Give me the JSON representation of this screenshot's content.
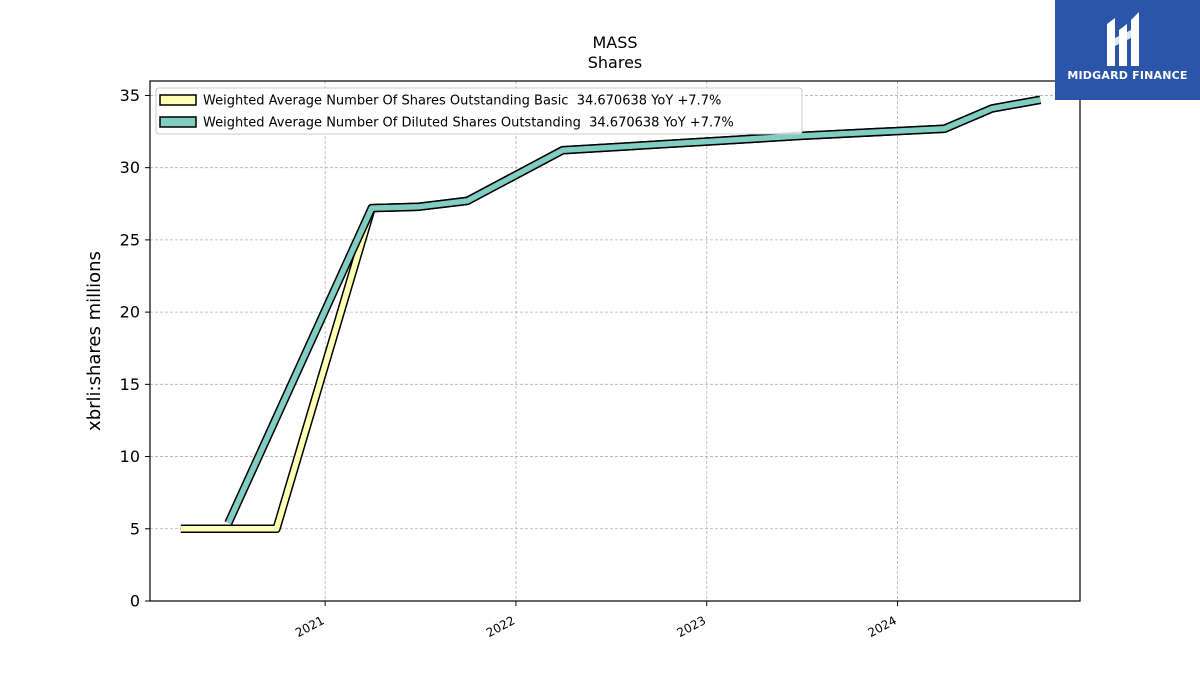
{
  "chart_data": {
    "type": "line",
    "title": "MASS",
    "subtitle": "Shares",
    "xlabel": "",
    "ylabel": "xbrli:shares millions",
    "xlim": [
      "2020-02-01",
      "2024-12-15"
    ],
    "ylim": [
      0,
      36
    ],
    "y_ticks": [
      0,
      5,
      10,
      15,
      20,
      25,
      30,
      35
    ],
    "x_ticks": [
      {
        "date": "2021-01-01",
        "label": "2021"
      },
      {
        "date": "2022-01-01",
        "label": "2022"
      },
      {
        "date": "2023-01-01",
        "label": "2023"
      },
      {
        "date": "2024-01-01",
        "label": "2024"
      }
    ],
    "grid": true,
    "legend_position": "top-left",
    "series": [
      {
        "name": "Weighted Average Number Of Shares Outstanding Basic  34.670638 YoY +7.7%",
        "color": "#ffffb3",
        "points": [
          {
            "x": "2020-03-31",
            "y": 5.0
          },
          {
            "x": "2020-09-30",
            "y": 5.0
          },
          {
            "x": "2021-03-31",
            "y": 27.2
          },
          {
            "x": "2021-06-30",
            "y": 27.3
          },
          {
            "x": "2021-09-30",
            "y": 27.7
          },
          {
            "x": "2022-03-31",
            "y": 31.2
          },
          {
            "x": "2023-06-30",
            "y": 32.2
          },
          {
            "x": "2024-03-31",
            "y": 32.7
          },
          {
            "x": "2024-06-30",
            "y": 34.1
          },
          {
            "x": "2024-09-30",
            "y": 34.7
          }
        ]
      },
      {
        "name": "Weighted Average Number Of Diluted Shares Outstanding  34.670638 YoY +7.7%",
        "color": "#80cdc1",
        "points": [
          {
            "x": "2020-06-30",
            "y": 5.4
          },
          {
            "x": "2021-03-31",
            "y": 27.2
          },
          {
            "x": "2021-06-30",
            "y": 27.3
          },
          {
            "x": "2021-09-30",
            "y": 27.7
          },
          {
            "x": "2022-03-31",
            "y": 31.2
          },
          {
            "x": "2023-06-30",
            "y": 32.2
          },
          {
            "x": "2024-03-31",
            "y": 32.7
          },
          {
            "x": "2024-06-30",
            "y": 34.1
          },
          {
            "x": "2024-09-30",
            "y": 34.7
          }
        ]
      }
    ]
  },
  "logo": {
    "name": "MIDGARD FINANCE",
    "background": "#2a55a8"
  }
}
